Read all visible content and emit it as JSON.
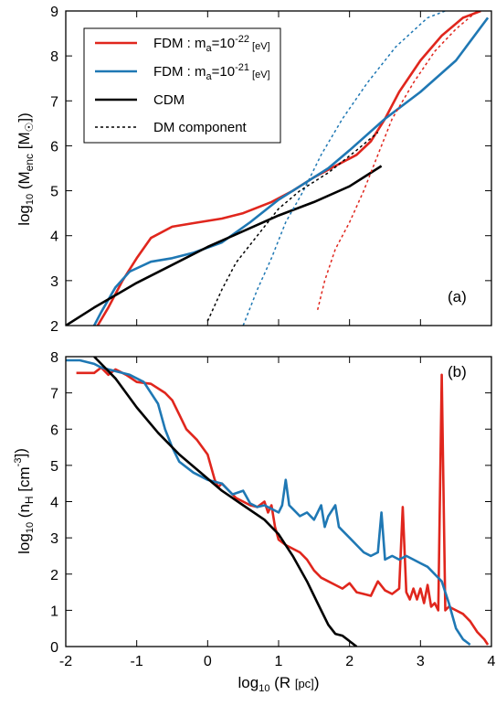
{
  "colors": {
    "fdm22": "#e0261d",
    "fdm21": "#1f78b4",
    "cdm": "#000000"
  },
  "chart_data": [
    {
      "type": "line",
      "panel_label": "(a)",
      "xlim": [
        -2,
        4
      ],
      "ylim": [
        2,
        9
      ],
      "xticks": [
        -2,
        -1,
        0,
        1,
        2,
        3,
        4
      ],
      "yticks": [
        2,
        3,
        4,
        5,
        6,
        7,
        8,
        9
      ],
      "ylabel": {
        "main": "log",
        "sub": "10",
        "rest1": " (M",
        "sub2": "enc",
        "rest2": " [M",
        "sun": "☉",
        "rest3": "])"
      },
      "legend_position": "top-left",
      "legend": [
        {
          "name": "FDM : m",
          "sub": "a",
          "mid": "=10",
          "sup": "-22",
          "unit": " [eV]",
          "style": "fdm22"
        },
        {
          "name": "FDM : m",
          "sub": "a",
          "mid": "=10",
          "sup": "-21",
          "unit": " [eV]",
          "style": "fdm21"
        },
        {
          "name": "CDM",
          "style": "cdm"
        },
        {
          "name": "DM component",
          "style": "dashed"
        }
      ],
      "series": [
        {
          "key": "fdm22",
          "dashed": false,
          "points": [
            [
              -1.55,
              2.0
            ],
            [
              -1.4,
              2.4
            ],
            [
              -1.2,
              3.0
            ],
            [
              -1.0,
              3.5
            ],
            [
              -0.8,
              3.95
            ],
            [
              -0.5,
              4.2
            ],
            [
              -0.2,
              4.28
            ],
            [
              0.2,
              4.38
            ],
            [
              0.5,
              4.5
            ],
            [
              0.9,
              4.75
            ],
            [
              1.2,
              5.0
            ],
            [
              1.5,
              5.3
            ],
            [
              1.8,
              5.55
            ],
            [
              2.1,
              5.8
            ],
            [
              2.3,
              6.1
            ],
            [
              2.5,
              6.6
            ],
            [
              2.7,
              7.2
            ],
            [
              3.0,
              7.9
            ],
            [
              3.3,
              8.45
            ],
            [
              3.6,
              8.85
            ],
            [
              3.85,
              9.0
            ]
          ]
        },
        {
          "key": "fdm21",
          "dashed": false,
          "points": [
            [
              -1.6,
              2.0
            ],
            [
              -1.5,
              2.3
            ],
            [
              -1.3,
              2.85
            ],
            [
              -1.1,
              3.2
            ],
            [
              -0.8,
              3.42
            ],
            [
              -0.5,
              3.5
            ],
            [
              -0.2,
              3.62
            ],
            [
              0.2,
              3.85
            ],
            [
              0.6,
              4.3
            ],
            [
              1.0,
              4.8
            ],
            [
              1.3,
              5.1
            ],
            [
              1.7,
              5.5
            ],
            [
              2.0,
              5.9
            ],
            [
              2.5,
              6.6
            ],
            [
              3.0,
              7.2
            ],
            [
              3.5,
              7.9
            ],
            [
              3.95,
              8.85
            ]
          ]
        },
        {
          "key": "cdm",
          "dashed": false,
          "points": [
            [
              -2.0,
              2.0
            ],
            [
              -1.6,
              2.4
            ],
            [
              -1.0,
              2.95
            ],
            [
              -0.5,
              3.35
            ],
            [
              0.0,
              3.75
            ],
            [
              0.5,
              4.1
            ],
            [
              1.0,
              4.45
            ],
            [
              1.5,
              4.75
            ],
            [
              2.0,
              5.1
            ],
            [
              2.3,
              5.4
            ],
            [
              2.45,
              5.55
            ]
          ]
        },
        {
          "key": "fdm22",
          "dashed": true,
          "points": [
            [
              1.55,
              2.35
            ],
            [
              1.65,
              3.0
            ],
            [
              1.8,
              3.7
            ],
            [
              2.0,
              4.3
            ],
            [
              2.2,
              5.0
            ],
            [
              2.4,
              5.8
            ],
            [
              2.6,
              6.6
            ],
            [
              2.9,
              7.4
            ],
            [
              3.2,
              8.1
            ],
            [
              3.5,
              8.6
            ],
            [
              3.8,
              9.0
            ]
          ]
        },
        {
          "key": "fdm21",
          "dashed": true,
          "points": [
            [
              0.5,
              2.0
            ],
            [
              0.7,
              2.8
            ],
            [
              0.9,
              3.5
            ],
            [
              1.1,
              4.3
            ],
            [
              1.35,
              5.0
            ],
            [
              1.6,
              5.8
            ],
            [
              1.9,
              6.6
            ],
            [
              2.25,
              7.4
            ],
            [
              2.65,
              8.2
            ],
            [
              3.1,
              8.85
            ],
            [
              3.35,
              9.0
            ]
          ]
        },
        {
          "key": "cdm",
          "dashed": true,
          "points": [
            [
              0.0,
              2.1
            ],
            [
              0.2,
              2.8
            ],
            [
              0.4,
              3.4
            ],
            [
              0.7,
              4.0
            ],
            [
              1.0,
              4.6
            ],
            [
              1.3,
              5.0
            ],
            [
              1.7,
              5.4
            ],
            [
              2.1,
              5.9
            ],
            [
              2.4,
              6.3
            ]
          ]
        }
      ]
    },
    {
      "type": "line",
      "panel_label": "(b)",
      "xlim": [
        -2,
        4
      ],
      "ylim": [
        0,
        8
      ],
      "xticks": [
        -2,
        -1,
        0,
        1,
        2,
        3,
        4
      ],
      "yticks": [
        0,
        1,
        2,
        3,
        4,
        5,
        6,
        7,
        8
      ],
      "xlabel": {
        "main": "log",
        "sub": "10",
        "rest": " (R ",
        "unit": "[pc]",
        "end": ")"
      },
      "ylabel": {
        "main": "log",
        "sub": "10",
        "rest1": " (n",
        "sub2": "H",
        "rest2": " [cm",
        "sup": "-3",
        "rest3": "])"
      },
      "series": [
        {
          "key": "fdm22",
          "dashed": false,
          "points": [
            [
              -1.85,
              7.55
            ],
            [
              -1.6,
              7.55
            ],
            [
              -1.5,
              7.7
            ],
            [
              -1.4,
              7.5
            ],
            [
              -1.3,
              7.65
            ],
            [
              -1.15,
              7.5
            ],
            [
              -1.0,
              7.3
            ],
            [
              -0.8,
              7.25
            ],
            [
              -0.6,
              7.0
            ],
            [
              -0.5,
              6.8
            ],
            [
              -0.4,
              6.4
            ],
            [
              -0.3,
              6.0
            ],
            [
              -0.15,
              5.7
            ],
            [
              0.0,
              5.3
            ],
            [
              0.1,
              4.6
            ],
            [
              0.15,
              4.4
            ],
            [
              0.2,
              4.5
            ],
            [
              0.3,
              4.3
            ],
            [
              0.4,
              4.1
            ],
            [
              0.5,
              4.0
            ],
            [
              0.6,
              3.9
            ],
            [
              0.7,
              3.85
            ],
            [
              0.8,
              4.0
            ],
            [
              0.85,
              3.7
            ],
            [
              0.9,
              3.9
            ],
            [
              0.95,
              3.3
            ],
            [
              1.0,
              2.95
            ],
            [
              1.1,
              2.8
            ],
            [
              1.2,
              2.7
            ],
            [
              1.3,
              2.6
            ],
            [
              1.4,
              2.4
            ],
            [
              1.5,
              2.1
            ],
            [
              1.6,
              1.9
            ],
            [
              1.7,
              1.8
            ],
            [
              1.8,
              1.7
            ],
            [
              1.9,
              1.6
            ],
            [
              2.0,
              1.75
            ],
            [
              2.1,
              1.5
            ],
            [
              2.2,
              1.45
            ],
            [
              2.3,
              1.4
            ],
            [
              2.35,
              1.6
            ],
            [
              2.4,
              1.8
            ],
            [
              2.5,
              1.55
            ],
            [
              2.6,
              1.45
            ],
            [
              2.7,
              1.6
            ],
            [
              2.75,
              3.85
            ],
            [
              2.8,
              1.5
            ],
            [
              2.85,
              1.3
            ],
            [
              2.9,
              1.6
            ],
            [
              2.95,
              1.3
            ],
            [
              3.0,
              1.6
            ],
            [
              3.05,
              1.2
            ],
            [
              3.1,
              1.7
            ],
            [
              3.15,
              1.1
            ],
            [
              3.2,
              1.2
            ],
            [
              3.25,
              1.0
            ],
            [
              3.3,
              7.5
            ],
            [
              3.35,
              1.0
            ],
            [
              3.4,
              1.1
            ],
            [
              3.5,
              1.0
            ],
            [
              3.6,
              0.9
            ],
            [
              3.7,
              0.7
            ],
            [
              3.8,
              0.4
            ],
            [
              3.9,
              0.2
            ],
            [
              3.95,
              0.05
            ]
          ]
        },
        {
          "key": "fdm21",
          "dashed": false,
          "points": [
            [
              -2.0,
              7.9
            ],
            [
              -1.8,
              7.9
            ],
            [
              -1.6,
              7.8
            ],
            [
              -1.5,
              7.7
            ],
            [
              -1.3,
              7.6
            ],
            [
              -1.1,
              7.5
            ],
            [
              -0.9,
              7.3
            ],
            [
              -0.7,
              6.7
            ],
            [
              -0.6,
              6.0
            ],
            [
              -0.5,
              5.5
            ],
            [
              -0.4,
              5.1
            ],
            [
              -0.2,
              4.8
            ],
            [
              0.0,
              4.6
            ],
            [
              0.2,
              4.5
            ],
            [
              0.35,
              4.2
            ],
            [
              0.5,
              4.3
            ],
            [
              0.6,
              3.95
            ],
            [
              0.7,
              3.85
            ],
            [
              0.8,
              3.9
            ],
            [
              0.9,
              3.8
            ],
            [
              1.0,
              3.7
            ],
            [
              1.05,
              3.9
            ],
            [
              1.1,
              4.6
            ],
            [
              1.15,
              3.9
            ],
            [
              1.2,
              3.8
            ],
            [
              1.3,
              3.6
            ],
            [
              1.4,
              3.7
            ],
            [
              1.5,
              3.5
            ],
            [
              1.6,
              3.9
            ],
            [
              1.65,
              3.3
            ],
            [
              1.7,
              3.6
            ],
            [
              1.8,
              3.9
            ],
            [
              1.85,
              3.3
            ],
            [
              1.9,
              3.2
            ],
            [
              2.0,
              3.0
            ],
            [
              2.1,
              2.8
            ],
            [
              2.2,
              2.6
            ],
            [
              2.3,
              2.5
            ],
            [
              2.4,
              2.6
            ],
            [
              2.45,
              3.7
            ],
            [
              2.5,
              2.4
            ],
            [
              2.6,
              2.5
            ],
            [
              2.7,
              2.4
            ],
            [
              2.8,
              2.5
            ],
            [
              2.9,
              2.4
            ],
            [
              3.0,
              2.3
            ],
            [
              3.1,
              2.2
            ],
            [
              3.2,
              2.0
            ],
            [
              3.3,
              1.8
            ],
            [
              3.4,
              1.2
            ],
            [
              3.5,
              0.5
            ],
            [
              3.6,
              0.2
            ],
            [
              3.7,
              0.05
            ]
          ]
        },
        {
          "key": "cdm",
          "dashed": false,
          "points": [
            [
              -1.6,
              8.0
            ],
            [
              -1.3,
              7.4
            ],
            [
              -1.0,
              6.6
            ],
            [
              -0.7,
              5.9
            ],
            [
              -0.4,
              5.3
            ],
            [
              -0.1,
              4.8
            ],
            [
              0.2,
              4.3
            ],
            [
              0.5,
              3.9
            ],
            [
              0.8,
              3.5
            ],
            [
              1.0,
              3.1
            ],
            [
              1.2,
              2.5
            ],
            [
              1.4,
              1.8
            ],
            [
              1.55,
              1.2
            ],
            [
              1.7,
              0.6
            ],
            [
              1.8,
              0.35
            ],
            [
              1.9,
              0.3
            ],
            [
              2.0,
              0.15
            ],
            [
              2.1,
              0.0
            ]
          ]
        }
      ]
    }
  ]
}
